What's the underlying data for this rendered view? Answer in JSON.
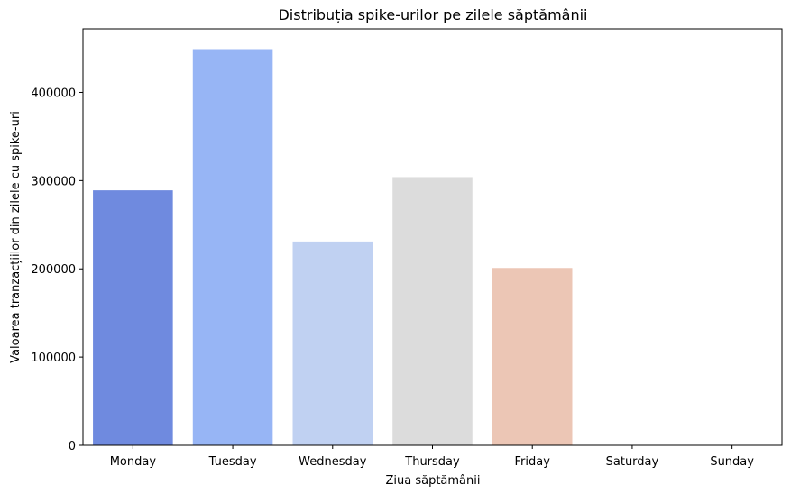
{
  "chart_data": {
    "type": "bar",
    "title": "Distribuția spike-urilor pe zilele săptămânii",
    "xlabel": "Ziua săptămânii",
    "ylabel": "Valoarea tranzacțiilor din zilele cu spike-uri",
    "categories": [
      "Monday",
      "Tuesday",
      "Wednesday",
      "Thursday",
      "Friday",
      "Saturday",
      "Sunday"
    ],
    "values": [
      289000,
      449000,
      231000,
      304000,
      201000,
      0,
      0
    ],
    "colors": [
      "#6f8adf",
      "#97b5f5",
      "#c0d1f2",
      "#dcdcdc",
      "#ecc6b5",
      "#e8a48a",
      "#d96f5a"
    ],
    "ylim": [
      0,
      472000
    ],
    "yticks": [
      0,
      100000,
      200000,
      300000,
      400000
    ],
    "ytick_labels": [
      "0",
      "100000",
      "200000",
      "300000",
      "400000"
    ],
    "grid": false,
    "legend": "none"
  }
}
